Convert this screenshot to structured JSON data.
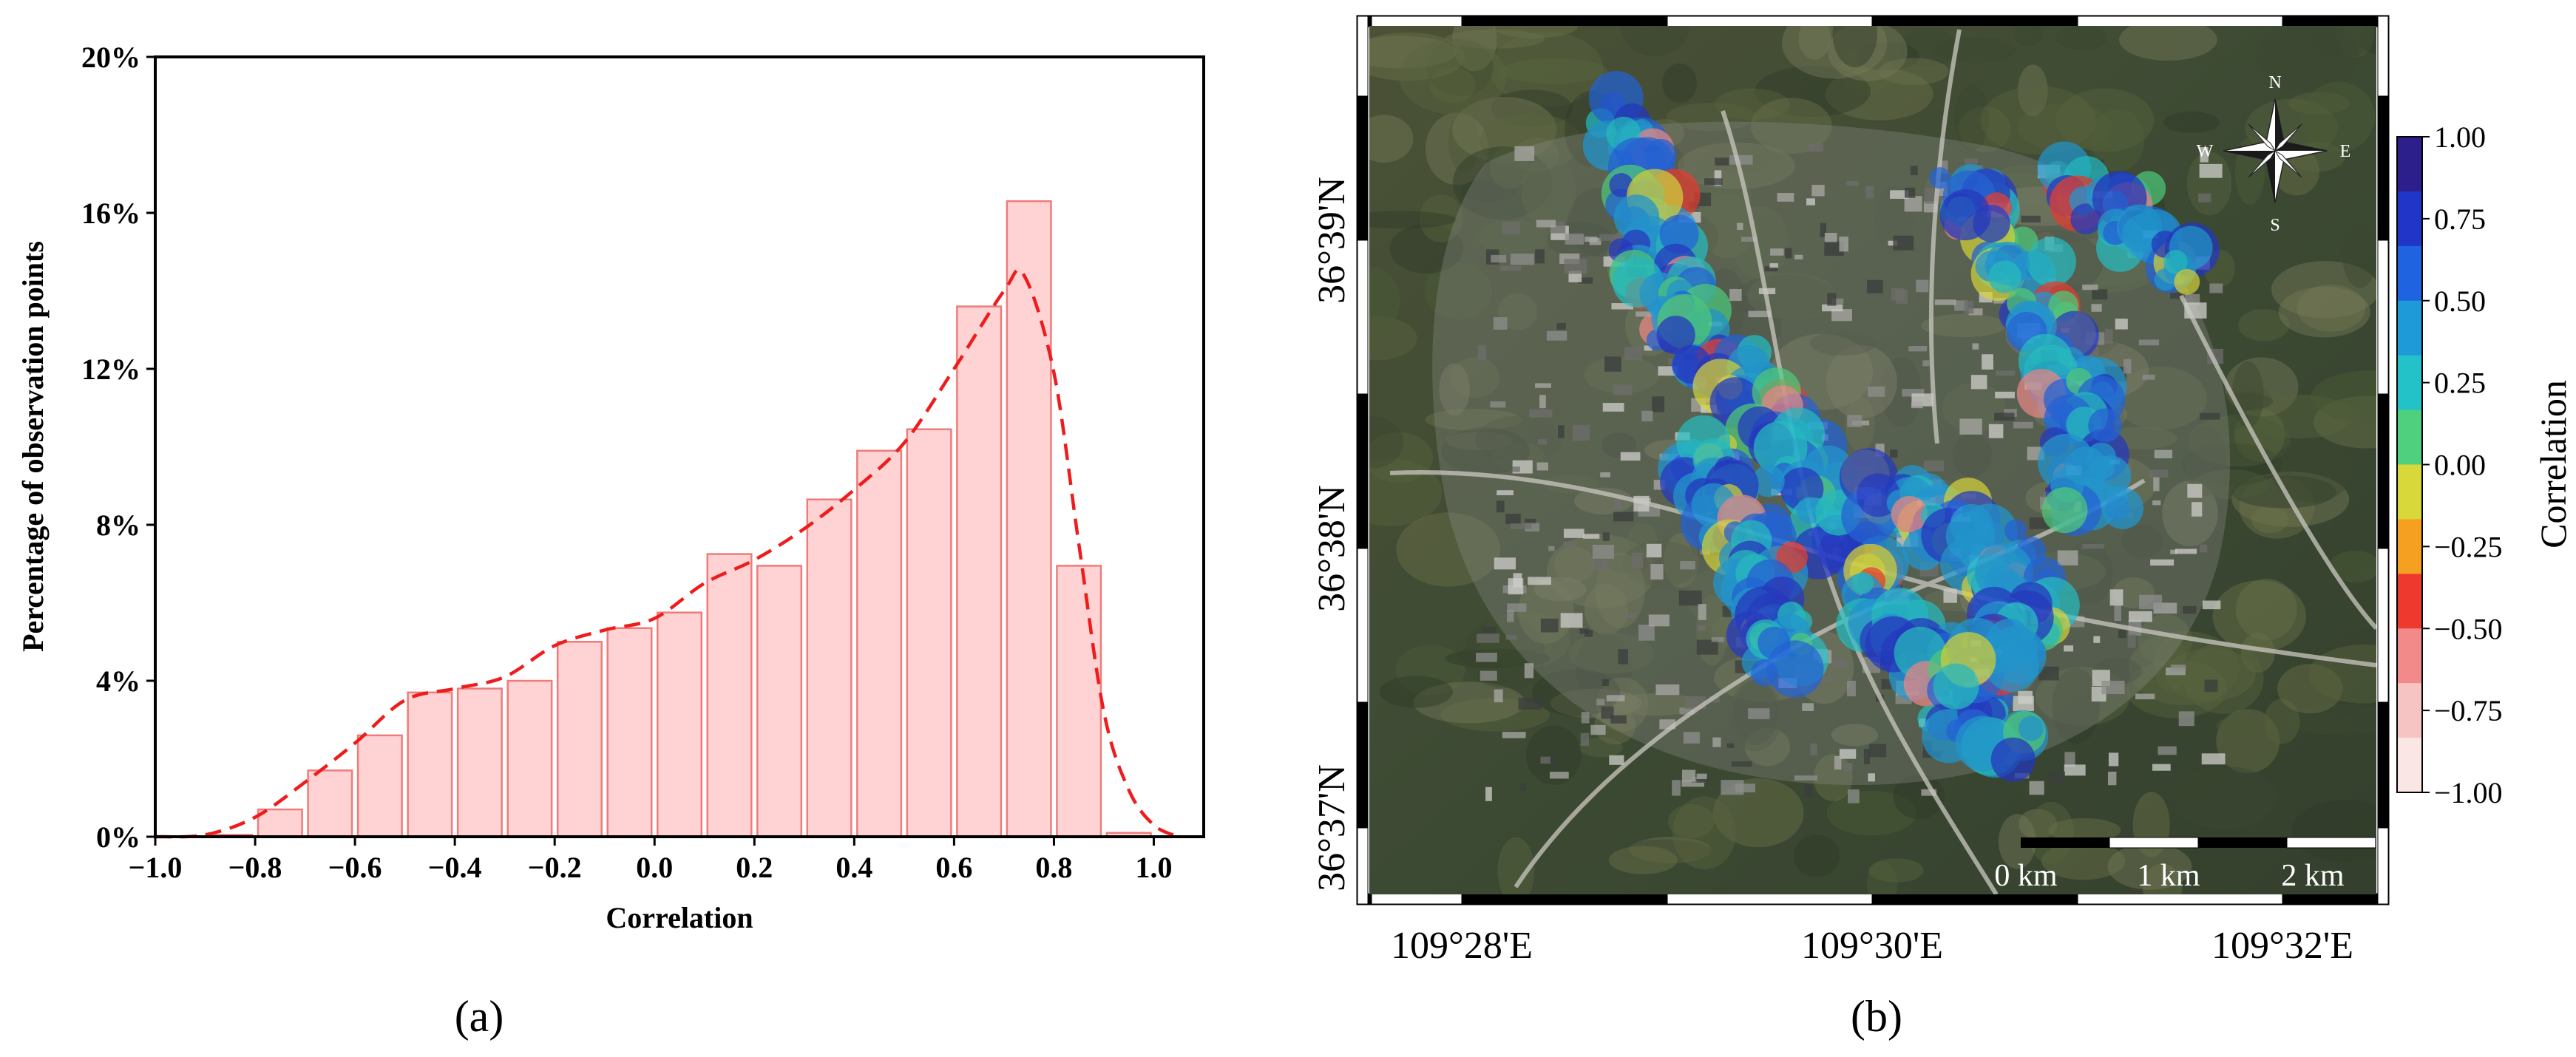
{
  "panel_labels": {
    "a": "(a)",
    "b": "(b)"
  },
  "chart_data": [
    {
      "type": "bar",
      "panel": "(a)",
      "title": "",
      "xlabel": "Correlation",
      "ylabel": "Percentage of observation points",
      "xlim": [
        -1.0,
        1.1
      ],
      "ylim": [
        0,
        20
      ],
      "grid": false,
      "x_ticks": [
        "−1.0",
        "−0.8",
        "−0.6",
        "−0.4",
        "−0.2",
        "0.0",
        "0.2",
        "0.4",
        "0.6",
        "0.8",
        "1.0"
      ],
      "x_tick_values": [
        -1.0,
        -0.8,
        -0.6,
        -0.4,
        -0.2,
        0.0,
        0.2,
        0.4,
        0.6,
        0.8,
        1.0
      ],
      "y_ticks": [
        "0%",
        "4%",
        "8%",
        "12%",
        "16%",
        "20%"
      ],
      "y_tick_values": [
        0,
        4,
        8,
        12,
        16,
        20
      ],
      "bin_width": 0.1,
      "bin_centers": [
        -0.95,
        -0.85,
        -0.75,
        -0.65,
        -0.55,
        -0.45,
        -0.35,
        -0.25,
        -0.15,
        -0.05,
        0.05,
        0.15,
        0.25,
        0.35,
        0.45,
        0.55,
        0.65,
        0.75,
        0.85,
        0.95
      ],
      "values": [
        0.0,
        0.05,
        0.7,
        1.7,
        2.6,
        3.7,
        3.8,
        4.0,
        5.0,
        5.35,
        5.75,
        7.25,
        6.95,
        8.65,
        9.9,
        10.45,
        13.6,
        16.3,
        6.95,
        0.1
      ],
      "kde": {
        "x": [
          -1.0,
          -0.9,
          -0.8,
          -0.7,
          -0.6,
          -0.5,
          -0.4,
          -0.3,
          -0.2,
          -0.1,
          0.0,
          0.1,
          0.2,
          0.3,
          0.4,
          0.5,
          0.6,
          0.7,
          0.74,
          0.8,
          0.85,
          0.9,
          0.95,
          1.0,
          1.05
        ],
        "y": [
          0.0,
          0.05,
          0.5,
          1.4,
          2.4,
          3.5,
          3.8,
          4.1,
          4.9,
          5.3,
          5.6,
          6.5,
          7.1,
          7.9,
          8.9,
          10.1,
          12.0,
          14.0,
          14.4,
          11.9,
          7.5,
          3.2,
          1.2,
          0.3,
          0.0
        ]
      },
      "colors": {
        "bar_fill": "#ffd3d3",
        "bar_edge": "#ef7b7b",
        "kde_line": "#ee1c1c"
      }
    },
    {
      "type": "heatmap",
      "panel": "(b)",
      "title": "",
      "colorbar_label": "Correlation",
      "colorbar_ticks": [
        "1.00",
        "0.75",
        "0.50",
        "0.25",
        "0.00",
        "−0.25",
        "−0.50",
        "−0.75",
        "−1.00"
      ],
      "colorbar_range": [
        -1.0,
        1.0
      ],
      "colorbar_colors": [
        "#2c1f8c",
        "#2036c8",
        "#1f63e0",
        "#1e9ad8",
        "#22c2c8",
        "#4ed07e",
        "#d9d83a",
        "#f5a020",
        "#ee3a2e",
        "#f28a8a",
        "#f7c4c4",
        "#fbe6e6"
      ],
      "lon_ticks": [
        "109°28'E",
        "109°30'E",
        "109°32'E"
      ],
      "lat_ticks": [
        "36°39'N",
        "36°38'N",
        "36°37'N"
      ],
      "compass": {
        "N": "N",
        "E": "E",
        "S": "S",
        "W": "W"
      },
      "scale_bar": [
        "0 km",
        "1 km",
        "2 km"
      ]
    }
  ]
}
